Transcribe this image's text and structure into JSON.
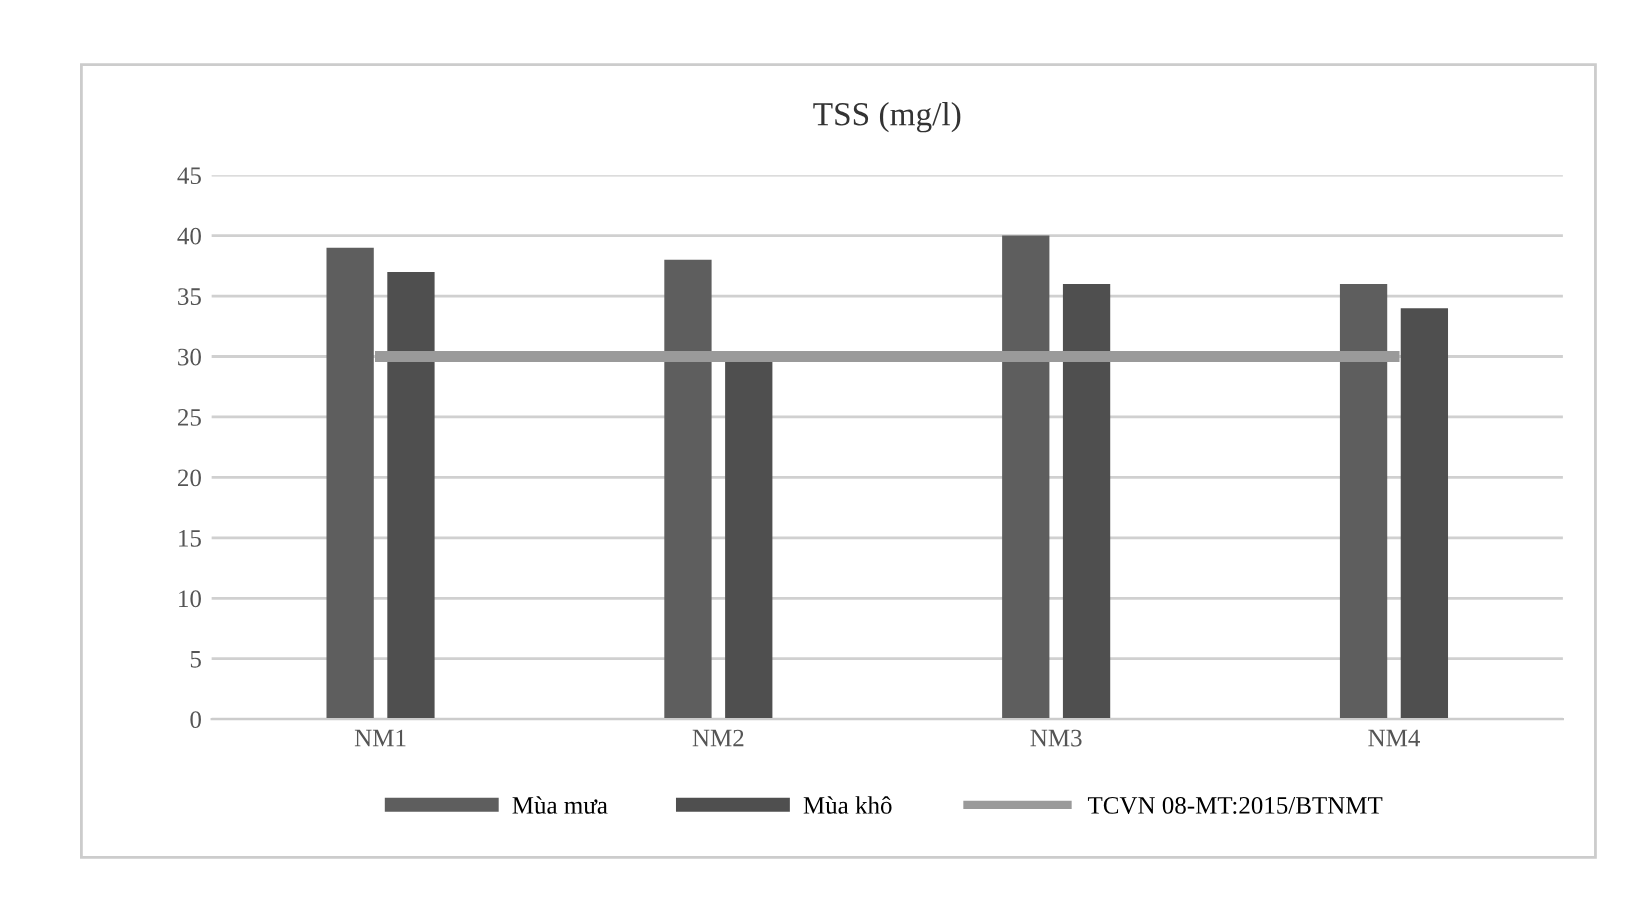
{
  "chart_data": {
    "type": "bar",
    "title": "TSS (mg/l)",
    "categories": [
      "NM1",
      "NM2",
      "NM3",
      "NM4"
    ],
    "series": [
      {
        "name": "Mùa mưa",
        "color": "#5e5e5e",
        "values": [
          39,
          38,
          40,
          36
        ]
      },
      {
        "name": "Mùa khô",
        "color": "#4f4f4f",
        "values": [
          37,
          30,
          36,
          34
        ]
      },
      {
        "name": "TCVN 08-MT:2015/BTNMT",
        "type": "line",
        "color": "#9a9a9a",
        "values": [
          30,
          30,
          30,
          30
        ]
      }
    ],
    "ylim": [
      0,
      45
    ],
    "yticks": [
      0,
      5,
      10,
      15,
      20,
      25,
      30,
      35,
      40,
      45
    ],
    "grid": "y",
    "legend": "bottom"
  }
}
